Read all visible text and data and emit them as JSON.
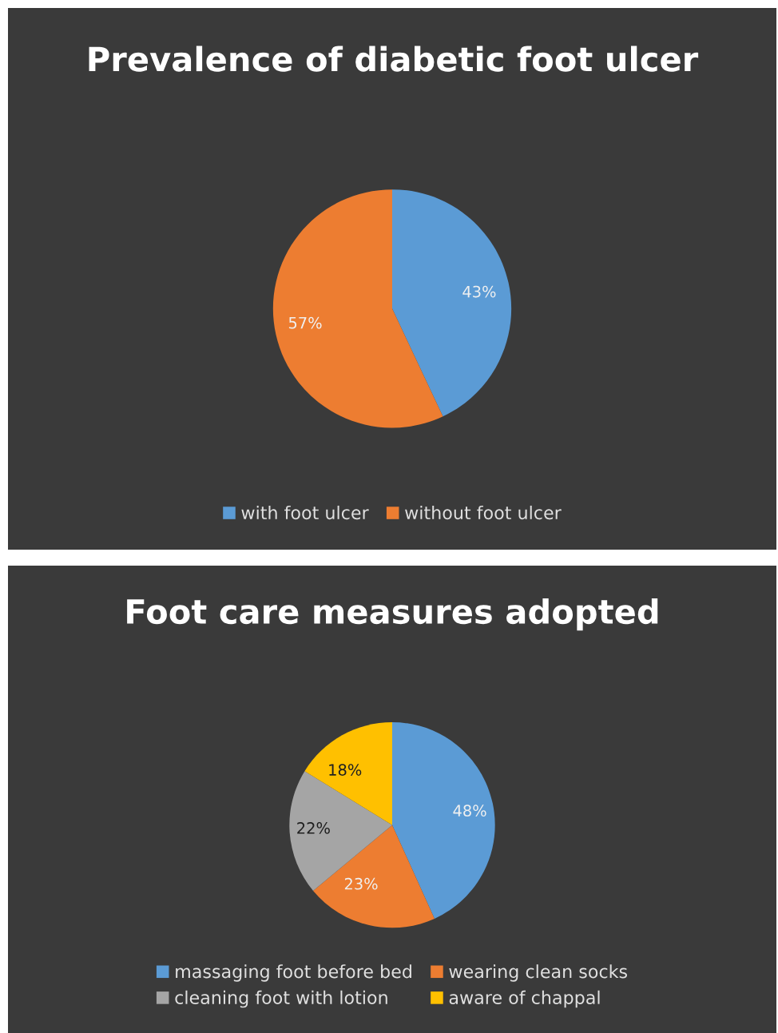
{
  "chart_data": [
    {
      "type": "pie",
      "title": "Prevalence of diabetic foot ulcer",
      "categories": [
        "with foot ulcer",
        "without foot ulcer"
      ],
      "values": [
        43,
        57
      ],
      "value_labels": [
        "43%",
        "57%"
      ],
      "colors": [
        "#5b9bd5",
        "#ed7d31"
      ],
      "legend": "bottom"
    },
    {
      "type": "pie",
      "title": "Foot care measures adopted",
      "categories": [
        "massaging foot before bed",
        "wearing clean socks",
        "cleaning foot with lotion",
        "aware of chappal"
      ],
      "values": [
        48,
        23,
        22,
        18
      ],
      "value_labels": [
        "48%",
        "23%",
        "22%",
        "18%"
      ],
      "colors": [
        "#5b9bd5",
        "#ed7d31",
        "#a5a5a5",
        "#ffc000"
      ],
      "legend": "bottom"
    }
  ]
}
